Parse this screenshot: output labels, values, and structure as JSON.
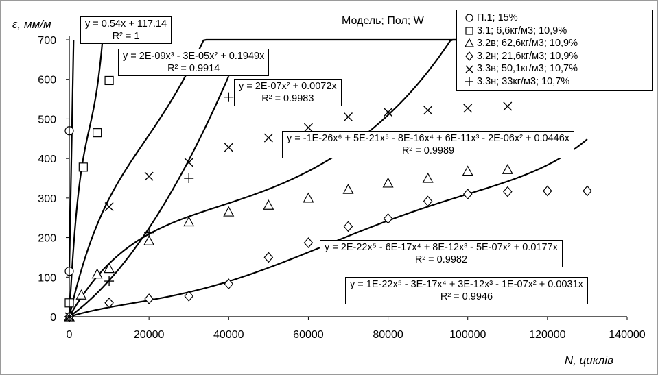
{
  "chart_data": {
    "type": "scatter",
    "title": "Модель; Пол; W",
    "xlabel": "N, циклів",
    "ylabel": "ε, мм/м",
    "xlim": [
      0,
      140000
    ],
    "ylim": [
      0,
      700
    ],
    "xticks": [
      0,
      20000,
      40000,
      60000,
      80000,
      100000,
      120000,
      140000
    ],
    "yticks": [
      0,
      100,
      200,
      300,
      400,
      500,
      600,
      700
    ],
    "grid": false,
    "legend_position": "top-right",
    "series": [
      {
        "name": "П.1; 15%",
        "marker": "circle",
        "points": [
          [
            0,
            115
          ],
          [
            0,
            470
          ]
        ],
        "trendline": {
          "type": "linear",
          "c": [
            117.14,
            0.54
          ],
          "xmax": 1080
        }
      },
      {
        "name": "3.1; 6,6кг/м3; 10,9%",
        "marker": "square",
        "points": [
          [
            0,
            35
          ],
          [
            3500,
            378
          ],
          [
            7000,
            465
          ],
          [
            10000,
            597
          ]
        ],
        "trendline": {
          "type": "poly",
          "c": [
            0,
            0.1949,
            -3e-05,
            2e-09
          ],
          "xmax": 10000
        }
      },
      {
        "name": "3.2в; 62,6кг/м3; 10,9%",
        "marker": "triangle",
        "points": [
          [
            0,
            0
          ],
          [
            3000,
            55
          ],
          [
            7000,
            108
          ],
          [
            10000,
            122
          ],
          [
            20000,
            192
          ],
          [
            30000,
            240
          ],
          [
            40000,
            265
          ],
          [
            50000,
            282
          ],
          [
            60000,
            300
          ],
          [
            70000,
            322
          ],
          [
            80000,
            338
          ],
          [
            90000,
            350
          ],
          [
            100000,
            368
          ],
          [
            110000,
            372
          ]
        ],
        "trendline": {
          "type": "poly",
          "c": [
            0,
            0.0177,
            -5e-07,
            8e-12,
            -6e-17,
            2e-22
          ],
          "xmax": 110000
        }
      },
      {
        "name": "3.2н; 21,6кг/м3; 10,9%",
        "marker": "diamond",
        "points": [
          [
            0,
            0
          ],
          [
            10000,
            35
          ],
          [
            20000,
            45
          ],
          [
            30000,
            52
          ],
          [
            40000,
            83
          ],
          [
            50000,
            150
          ],
          [
            60000,
            187
          ],
          [
            70000,
            228
          ],
          [
            80000,
            248
          ],
          [
            90000,
            292
          ],
          [
            100000,
            310
          ],
          [
            110000,
            316
          ],
          [
            120000,
            318
          ],
          [
            130000,
            318
          ]
        ],
        "trendline": {
          "type": "poly",
          "c": [
            0,
            0.0031,
            -1e-07,
            3e-12,
            -3e-17,
            1e-22
          ],
          "xmax": 130000
        }
      },
      {
        "name": "3.3в; 50,1кг/м3; 10,7%",
        "marker": "x",
        "points": [
          [
            0,
            0
          ],
          [
            10000,
            278
          ],
          [
            20000,
            355
          ],
          [
            30000,
            390
          ],
          [
            40000,
            428
          ],
          [
            50000,
            452
          ],
          [
            60000,
            478
          ],
          [
            70000,
            505
          ],
          [
            80000,
            517
          ],
          [
            90000,
            522
          ],
          [
            100000,
            527
          ],
          [
            110000,
            532
          ]
        ],
        "trendline": {
          "type": "poly",
          "c": [
            0,
            0.0446,
            -2e-06,
            6e-11,
            -8e-16,
            5e-21,
            -1e-26
          ],
          "xmax": 110000
        }
      },
      {
        "name": "3.3н; 33кг/м3; 10,7%",
        "marker": "plus",
        "points": [
          [
            0,
            0
          ],
          [
            10000,
            90
          ],
          [
            20000,
            212
          ],
          [
            30000,
            350
          ],
          [
            40000,
            555
          ]
        ],
        "trendline": {
          "type": "poly",
          "c": [
            0,
            0.0072,
            2e-07
          ],
          "xmax": 40000
        }
      }
    ],
    "annotations": [
      {
        "eq": "y = 0.54x + 117.14",
        "r2": "R² = 1"
      },
      {
        "eq": "y = 2E-09x³ - 3E-05x² + 0.1949x",
        "r2": "R² = 0.9914"
      },
      {
        "eq": "y = 2E-07x² + 0.0072x",
        "r2": "R² = 0.9983"
      },
      {
        "eq": "y = -1E-26x⁶ + 5E-21x⁵ - 8E-16x⁴ + 6E-11x³ - 2E-06x² + 0.0446x",
        "r2": "R² = 0.9989"
      },
      {
        "eq": "y = 2E-22x⁵ - 6E-17x⁴ + 8E-12x³ - 5E-07x² + 0.0177x",
        "r2": "R² = 0.9982"
      },
      {
        "eq": "y = 1E-22x⁵ - 3E-17x⁴ + 3E-12x³ - 1E-07x² + 0.0031x",
        "r2": "R² = 0.9946"
      }
    ]
  }
}
